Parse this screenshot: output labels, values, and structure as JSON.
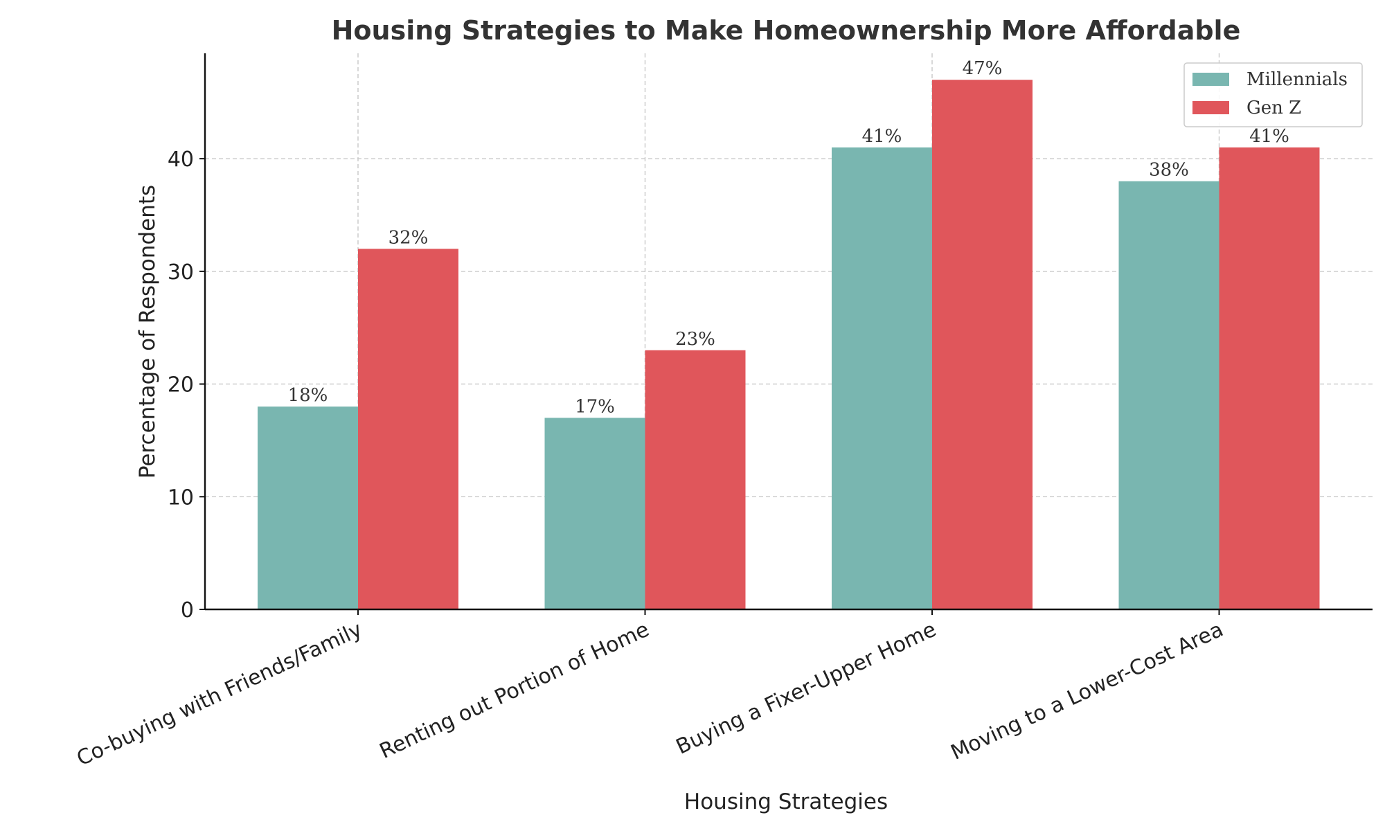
{
  "chart_data": {
    "type": "bar",
    "title": "Housing Strategies to Make Homeownership More Affordable",
    "xlabel": "Housing Strategies",
    "ylabel": "Percentage of Respondents",
    "categories": [
      "Co-buying with Friends/Family",
      "Renting out Portion of Home",
      "Buying a Fixer-Upper Home",
      "Moving to a Lower-Cost Area"
    ],
    "series": [
      {
        "name": "Millennials",
        "color": "#79b6b0",
        "values": [
          18,
          17,
          41,
          38
        ],
        "labels": [
          "18%",
          "17%",
          "41%",
          "38%"
        ]
      },
      {
        "name": "Gen Z",
        "color": "#e0565b",
        "values": [
          32,
          23,
          47,
          41
        ],
        "labels": [
          "32%",
          "23%",
          "47%",
          "41%"
        ]
      }
    ],
    "ylim": [
      0,
      49.35
    ],
    "yticks": [
      0,
      10,
      20,
      30,
      40
    ],
    "ytick_labels": [
      "0",
      "10",
      "20",
      "30",
      "40"
    ],
    "grid": true,
    "legend_position": "top-right"
  }
}
